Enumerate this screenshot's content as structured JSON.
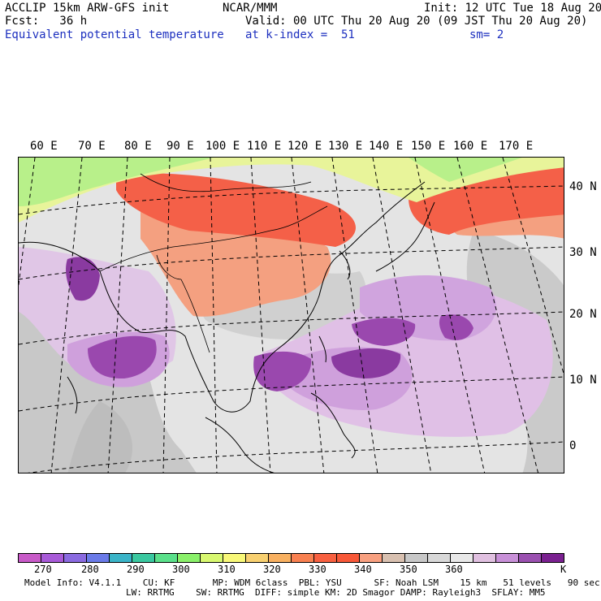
{
  "header": {
    "left_line1": "ACCLIP 15km ARW-GFS init",
    "left_line2": "Fcst:   36 h",
    "left_line3": "Equivalent potential temperature",
    "center_line1": "NCAR/MMM",
    "center_line2": "Valid: 00 UTC Thu 20 Aug 20 (09 JST Thu 20 Aug 20)",
    "center_line3": "at k-index =  51",
    "right_line1": "Init: 12 UTC Tue 18 Aug 20",
    "right_line3": "sm= 2"
  },
  "map": {
    "longitude_labels": [
      "60 E",
      "70 E",
      "80 E",
      "90 E",
      "100 E",
      "110 E",
      "120 E",
      "130 E",
      "140 E",
      "150 E",
      "160 E",
      "170 E"
    ],
    "latitude_labels": [
      "40 N",
      "30 N",
      "20 N",
      "10 N",
      "0"
    ]
  },
  "colorbar": {
    "colors": [
      "#c85ac8",
      "#a85ad8",
      "#8a6ae0",
      "#6a7ae8",
      "#3ab4c8",
      "#3ac8a0",
      "#5ae08a",
      "#8af06a",
      "#d8f870",
      "#f8f878",
      "#f8d070",
      "#f8b060",
      "#f88050",
      "#f86040",
      "#f85838",
      "#f8a080",
      "#d8c0b0",
      "#c8c8c8",
      "#d8d8d8",
      "#e8e8e8",
      "#e0c0e0",
      "#c890d8",
      "#9a50b0",
      "#7a2090"
    ],
    "tick_labels": [
      "270",
      "280",
      "290",
      "300",
      "310",
      "320",
      "330",
      "340",
      "350",
      "360"
    ],
    "unit": "K"
  },
  "footer": {
    "line1": "Model Info: V4.1.1    CU: KF       MP: WDM 6class  PBL: YSU      SF: Noah LSM    15 km   51 levels   90 sec",
    "line2": "LW: RRTMG    SW: RRTMG  DIFF: simple KM: 2D Smagor DAMP: Rayleigh3  SFLAY: MM5"
  }
}
